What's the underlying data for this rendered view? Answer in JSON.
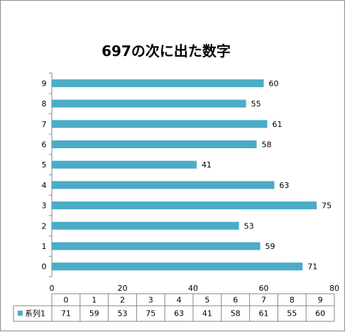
{
  "chart_data": {
    "type": "bar",
    "orientation": "horizontal",
    "title": "697の次に出た数字",
    "categories": [
      "0",
      "1",
      "2",
      "3",
      "4",
      "5",
      "6",
      "7",
      "8",
      "9"
    ],
    "series": [
      {
        "name": "系列1",
        "values": [
          71,
          59,
          53,
          75,
          63,
          41,
          58,
          61,
          55,
          60
        ],
        "color": "#4bacc6"
      }
    ],
    "xlim": [
      0,
      80
    ],
    "x_ticks": [
      0,
      20,
      40,
      60,
      80
    ],
    "grid": false,
    "data_labels": true,
    "legend": "data-table-below",
    "data_table": true
  }
}
